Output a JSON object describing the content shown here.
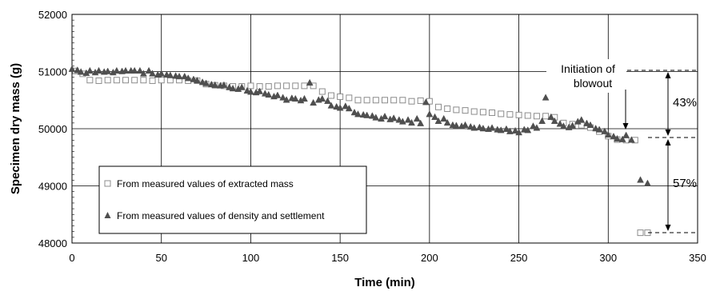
{
  "chart_data": {
    "type": "scatter",
    "title": "",
    "xlabel": "Time (min)",
    "ylabel": "Specimen dry mass (g)",
    "xlim": [
      0,
      350
    ],
    "ylim": [
      48000,
      52000
    ],
    "xticks": [
      0,
      50,
      100,
      150,
      200,
      250,
      300,
      350
    ],
    "yticks": [
      48000,
      49000,
      50000,
      51000,
      52000
    ],
    "grid": true,
    "legend_position": "lower-left",
    "series": [
      {
        "name": "From measured values of extracted mass",
        "marker": "square-open",
        "color": "#8c8c8c",
        "points": [
          [
            2,
            51010
          ],
          [
            6,
            50960
          ],
          [
            10,
            50850
          ],
          [
            15,
            50840
          ],
          [
            20,
            50850
          ],
          [
            25,
            50850
          ],
          [
            30,
            50850
          ],
          [
            35,
            50850
          ],
          [
            40,
            50850
          ],
          [
            45,
            50840
          ],
          [
            50,
            50850
          ],
          [
            55,
            50850
          ],
          [
            60,
            50850
          ],
          [
            65,
            50840
          ],
          [
            70,
            50840
          ],
          [
            75,
            50780
          ],
          [
            80,
            50760
          ],
          [
            85,
            50750
          ],
          [
            90,
            50740
          ],
          [
            95,
            50740
          ],
          [
            100,
            50750
          ],
          [
            105,
            50740
          ],
          [
            110,
            50740
          ],
          [
            115,
            50750
          ],
          [
            120,
            50750
          ],
          [
            125,
            50750
          ],
          [
            130,
            50750
          ],
          [
            135,
            50750
          ],
          [
            140,
            50650
          ],
          [
            145,
            50580
          ],
          [
            150,
            50560
          ],
          [
            155,
            50540
          ],
          [
            160,
            50500
          ],
          [
            165,
            50500
          ],
          [
            170,
            50500
          ],
          [
            175,
            50500
          ],
          [
            180,
            50500
          ],
          [
            185,
            50500
          ],
          [
            190,
            50480
          ],
          [
            195,
            50490
          ],
          [
            200,
            50480
          ],
          [
            205,
            50380
          ],
          [
            210,
            50350
          ],
          [
            215,
            50330
          ],
          [
            220,
            50320
          ],
          [
            225,
            50300
          ],
          [
            230,
            50290
          ],
          [
            235,
            50280
          ],
          [
            240,
            50260
          ],
          [
            245,
            50250
          ],
          [
            250,
            50240
          ],
          [
            255,
            50230
          ],
          [
            260,
            50220
          ],
          [
            265,
            50220
          ],
          [
            270,
            50200
          ],
          [
            275,
            50100
          ],
          [
            280,
            50080
          ],
          [
            285,
            50060
          ],
          [
            290,
            50020
          ],
          [
            295,
            49950
          ],
          [
            300,
            49870
          ],
          [
            305,
            49810
          ],
          [
            310,
            49800
          ],
          [
            315,
            49800
          ],
          [
            318,
            48180
          ],
          [
            322,
            48180
          ]
        ]
      },
      {
        "name": "From measured values of density and settlement",
        "marker": "triangle-filled",
        "color": "#4f4f4f",
        "points": [
          [
            0,
            51040
          ],
          [
            3,
            51020
          ],
          [
            5,
            50990
          ],
          [
            8,
            50970
          ],
          [
            10,
            51010
          ],
          [
            13,
            50980
          ],
          [
            15,
            51010
          ],
          [
            18,
            50990
          ],
          [
            20,
            51000
          ],
          [
            23,
            50980
          ],
          [
            25,
            51010
          ],
          [
            28,
            51000
          ],
          [
            30,
            51010
          ],
          [
            33,
            51010
          ],
          [
            35,
            51010
          ],
          [
            38,
            51010
          ],
          [
            40,
            50960
          ],
          [
            43,
            51010
          ],
          [
            45,
            50960
          ],
          [
            48,
            50940
          ],
          [
            50,
            50960
          ],
          [
            53,
            50940
          ],
          [
            55,
            50930
          ],
          [
            58,
            50920
          ],
          [
            60,
            50910
          ],
          [
            63,
            50910
          ],
          [
            65,
            50880
          ],
          [
            68,
            50860
          ],
          [
            70,
            50840
          ],
          [
            73,
            50810
          ],
          [
            75,
            50790
          ],
          [
            78,
            50770
          ],
          [
            80,
            50760
          ],
          [
            83,
            50750
          ],
          [
            85,
            50760
          ],
          [
            88,
            50720
          ],
          [
            90,
            50700
          ],
          [
            93,
            50690
          ],
          [
            95,
            50720
          ],
          [
            98,
            50660
          ],
          [
            100,
            50640
          ],
          [
            103,
            50630
          ],
          [
            105,
            50650
          ],
          [
            108,
            50610
          ],
          [
            110,
            50590
          ],
          [
            113,
            50560
          ],
          [
            115,
            50580
          ],
          [
            118,
            50540
          ],
          [
            120,
            50500
          ],
          [
            123,
            50530
          ],
          [
            125,
            50520
          ],
          [
            128,
            50490
          ],
          [
            130,
            50520
          ],
          [
            133,
            50800
          ],
          [
            135,
            50450
          ],
          [
            138,
            50500
          ],
          [
            140,
            50520
          ],
          [
            143,
            50480
          ],
          [
            145,
            50400
          ],
          [
            148,
            50380
          ],
          [
            150,
            50360
          ],
          [
            153,
            50390
          ],
          [
            155,
            50350
          ],
          [
            158,
            50280
          ],
          [
            160,
            50250
          ],
          [
            163,
            50240
          ],
          [
            165,
            50230
          ],
          [
            168,
            50220
          ],
          [
            170,
            50190
          ],
          [
            173,
            50170
          ],
          [
            175,
            50210
          ],
          [
            178,
            50160
          ],
          [
            180,
            50180
          ],
          [
            183,
            50150
          ],
          [
            185,
            50120
          ],
          [
            188,
            50150
          ],
          [
            190,
            50100
          ],
          [
            193,
            50170
          ],
          [
            195,
            50090
          ],
          [
            198,
            50460
          ],
          [
            200,
            50250
          ],
          [
            203,
            50200
          ],
          [
            205,
            50130
          ],
          [
            208,
            50170
          ],
          [
            210,
            50100
          ],
          [
            213,
            50060
          ],
          [
            215,
            50050
          ],
          [
            218,
            50040
          ],
          [
            220,
            50060
          ],
          [
            223,
            50030
          ],
          [
            225,
            50010
          ],
          [
            228,
            50020
          ],
          [
            230,
            50000
          ],
          [
            233,
            49990
          ],
          [
            235,
            50010
          ],
          [
            238,
            49980
          ],
          [
            240,
            49970
          ],
          [
            243,
            49990
          ],
          [
            245,
            49950
          ],
          [
            248,
            49960
          ],
          [
            250,
            49930
          ],
          [
            253,
            49980
          ],
          [
            255,
            49970
          ],
          [
            258,
            50040
          ],
          [
            260,
            50010
          ],
          [
            263,
            50130
          ],
          [
            265,
            50540
          ],
          [
            268,
            50200
          ],
          [
            270,
            50130
          ],
          [
            273,
            50080
          ],
          [
            275,
            50040
          ],
          [
            278,
            50020
          ],
          [
            280,
            50050
          ],
          [
            283,
            50120
          ],
          [
            285,
            50150
          ],
          [
            288,
            50090
          ],
          [
            290,
            50060
          ],
          [
            293,
            50000
          ],
          [
            295,
            49980
          ],
          [
            298,
            49950
          ],
          [
            300,
            49890
          ],
          [
            303,
            49860
          ],
          [
            305,
            49820
          ],
          [
            308,
            49810
          ],
          [
            310,
            49880
          ],
          [
            313,
            49800
          ],
          [
            318,
            49100
          ],
          [
            322,
            49040
          ]
        ]
      }
    ],
    "annotations": {
      "blowout_text": [
        "Initiation of",
        "blowout"
      ],
      "upper_percent": "43%",
      "lower_percent": "57%"
    }
  }
}
